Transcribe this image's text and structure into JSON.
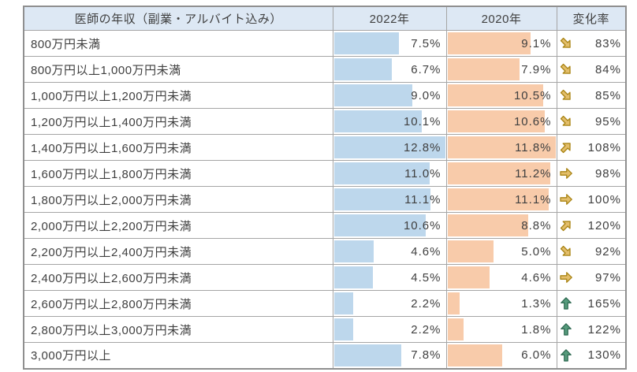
{
  "title": "医師の年収 2022年と2020年の比較テーブル",
  "header": {
    "income_label": "医師の年収（副業・アルバイト込み）",
    "year_2022_label": "2022年",
    "year_2020_label": "2020年",
    "change_label": "変化率"
  },
  "colors": {
    "header_bg": "#dde8f4",
    "bar_2022": "#bdd7ec",
    "bar_2020": "#f8cbaa",
    "border": "#a5a5a5",
    "outer_border": "#8f8f8f",
    "text": "#404040",
    "arrow_gold_fill": "#e3be6b",
    "arrow_gold_stroke": "#a98414",
    "arrow_green_fill": "#569b7c",
    "arrow_green_stroke": "#2f6a52"
  },
  "chart_data": {
    "type": "table",
    "title": "医師の年収（副業・アルバイト込み）",
    "columns": [
      "医師の年収（副業・アルバイト込み）",
      "2022年",
      "2020年",
      "変化率"
    ],
    "categories": [
      "800万円未満",
      "800万円以上1,000万円未満",
      "1,000万円以上1,200万円未満",
      "1,200万円以上1,400万円未満",
      "1,400万円以上1,600万円未満",
      "1,600万円以上1,800万円未満",
      "1,800万円以上2,000万円未満",
      "2,000万円以上2,200万円未満",
      "2,200万円以上2,400万円未満",
      "2,400万円以上2,600万円未満",
      "2,600万円以上2,800万円未満",
      "2,800万円以上3,000万円未満",
      "3,000万円以上"
    ],
    "series": [
      {
        "name": "2022年",
        "unit": "%",
        "values": [
          7.5,
          6.7,
          9.0,
          10.1,
          12.8,
          11.0,
          11.1,
          10.6,
          4.6,
          4.5,
          2.2,
          2.2,
          7.8
        ]
      },
      {
        "name": "2020年",
        "unit": "%",
        "values": [
          9.1,
          7.9,
          10.5,
          10.6,
          11.8,
          11.2,
          11.1,
          8.8,
          5.0,
          4.6,
          1.3,
          1.8,
          6.0
        ]
      },
      {
        "name": "変化率",
        "unit": "%",
        "values": [
          83,
          84,
          85,
          95,
          108,
          98,
          100,
          120,
          92,
          97,
          165,
          122,
          130
        ]
      }
    ],
    "trend_icons": [
      "down-right",
      "down-right",
      "down-right",
      "down-right",
      "up-right",
      "right",
      "right",
      "up-right",
      "down-right",
      "right",
      "up",
      "up",
      "up"
    ],
    "bar_style": "data-bars scaled per column, max value fills cell width",
    "bar_scale_max": {
      "2022": 12.8,
      "2020": 11.8
    }
  },
  "rows": [
    {
      "label": "800万円未満",
      "v2022": "7.5%",
      "v2020": "9.1%",
      "trend": "down-right",
      "change": "83%"
    },
    {
      "label": "800万円以上1,000万円未満",
      "v2022": "6.7%",
      "v2020": "7.9%",
      "trend": "down-right",
      "change": "84%"
    },
    {
      "label": "1,000万円以上1,200万円未満",
      "v2022": "9.0%",
      "v2020": "10.5%",
      "trend": "down-right",
      "change": "85%"
    },
    {
      "label": "1,200万円以上1,400万円未満",
      "v2022": "10.1%",
      "v2020": "10.6%",
      "trend": "down-right",
      "change": "95%"
    },
    {
      "label": "1,400万円以上1,600万円未満",
      "v2022": "12.8%",
      "v2020": "11.8%",
      "trend": "up-right",
      "change": "108%"
    },
    {
      "label": "1,600万円以上1,800万円未満",
      "v2022": "11.0%",
      "v2020": "11.2%",
      "trend": "right",
      "change": "98%"
    },
    {
      "label": "1,800万円以上2,000万円未満",
      "v2022": "11.1%",
      "v2020": "11.1%",
      "trend": "right",
      "change": "100%"
    },
    {
      "label": "2,000万円以上2,200万円未満",
      "v2022": "10.6%",
      "v2020": "8.8%",
      "trend": "up-right",
      "change": "120%"
    },
    {
      "label": "2,200万円以上2,400万円未満",
      "v2022": "4.6%",
      "v2020": "5.0%",
      "trend": "down-right",
      "change": "92%"
    },
    {
      "label": "2,400万円以上2,600万円未満",
      "v2022": "4.5%",
      "v2020": "4.6%",
      "trend": "right",
      "change": "97%"
    },
    {
      "label": "2,600万円以上2,800万円未満",
      "v2022": "2.2%",
      "v2020": "1.3%",
      "trend": "up",
      "change": "165%"
    },
    {
      "label": "2,800万円以上3,000万円未満",
      "v2022": "2.2%",
      "v2020": "1.8%",
      "trend": "up",
      "change": "122%"
    },
    {
      "label": "3,000万円以上",
      "v2022": "7.8%",
      "v2020": "6.0%",
      "trend": "up",
      "change": "130%"
    }
  ]
}
